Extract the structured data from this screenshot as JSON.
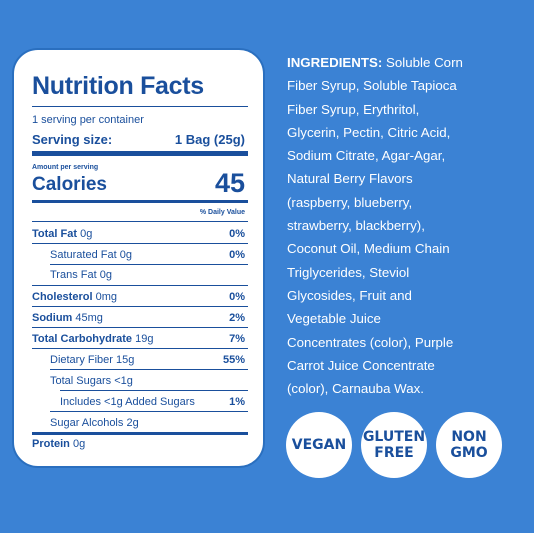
{
  "nutrition": {
    "title": "Nutrition Facts",
    "servings_per_container": "1 serving per container",
    "serving_size_label": "Serving size:",
    "serving_size_value": "1 Bag (25g)",
    "amount_per_serving": "Amount per serving",
    "calories_label": "Calories",
    "calories_value": "45",
    "daily_value_header": "% Daily Value",
    "rows": [
      {
        "label": "Total Fat",
        "amount": "0g",
        "dv": "0%"
      },
      {
        "label": "Saturated Fat",
        "amount": "0g",
        "dv": "0%"
      },
      {
        "label": "Trans Fat",
        "amount": "0g",
        "dv": ""
      },
      {
        "label": "Cholesterol",
        "amount": "0mg",
        "dv": "0%"
      },
      {
        "label": "Sodium",
        "amount": "45mg",
        "dv": "2%"
      },
      {
        "label": "Total Carbohydrate",
        "amount": "19g",
        "dv": "7%"
      },
      {
        "label": "Dietary Fiber",
        "amount": "15g",
        "dv": "55%"
      },
      {
        "label": "Total Sugars",
        "amount": "<1g",
        "dv": ""
      },
      {
        "label": "Includes <1g Added Sugars",
        "amount": "",
        "dv": "1%"
      },
      {
        "label": "Sugar Alcohols",
        "amount": "2g",
        "dv": ""
      },
      {
        "label": "Protein",
        "amount": "0g",
        "dv": ""
      }
    ]
  },
  "ingredients": {
    "heading": "INGREDIENTS:",
    "lines": [
      "Soluble Corn",
      "Fiber Syrup, Soluble Tapioca",
      "Fiber Syrup, Erythritol,",
      "Glycerin, Pectin, Citric Acid,",
      "Sodium Citrate, Agar-Agar,",
      "Natural Berry Flavors",
      "(raspberry, blueberry,",
      "strawberry, blackberry),",
      "Coconut Oil, Medium Chain",
      "Triglycerides, Steviol",
      "Glycosides, Fruit and",
      "Vegetable Juice",
      "Concentrates (color), Purple",
      "Carrot Juice Concentrate",
      "(color), Carnauba Wax."
    ]
  },
  "badges": [
    {
      "line1": "VEGAN",
      "line2": ""
    },
    {
      "line1": "GLUTEN",
      "line2": "FREE"
    },
    {
      "line1": "NON",
      "line2": "GMO"
    }
  ],
  "colors": {
    "background": "#3b82d4",
    "label_text": "#1a4f9c",
    "panel": "#ffffff"
  }
}
